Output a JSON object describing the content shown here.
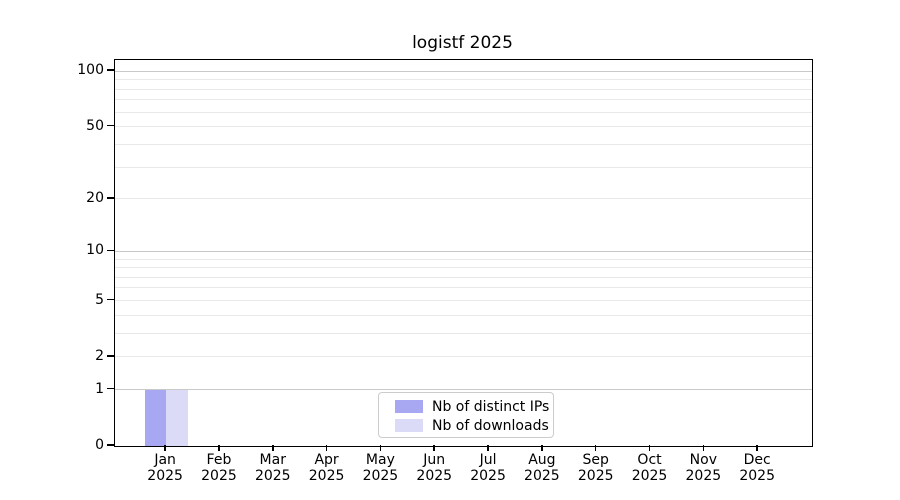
{
  "chart_data": {
    "type": "bar",
    "title": "logistf 2025",
    "categories": [
      "Jan",
      "Feb",
      "Mar",
      "Apr",
      "May",
      "Jun",
      "Jul",
      "Aug",
      "Sep",
      "Oct",
      "Nov",
      "Dec"
    ],
    "x_tick_year": "2025",
    "series": [
      {
        "name": "Nb of distinct IPs",
        "color": "#a8a8f2",
        "values": [
          1,
          0,
          0,
          0,
          0,
          0,
          0,
          0,
          0,
          0,
          0,
          0
        ]
      },
      {
        "name": "Nb of downloads",
        "color": "#dbdbf8",
        "values": [
          1,
          0,
          0,
          0,
          0,
          0,
          0,
          0,
          0,
          0,
          0,
          0
        ]
      }
    ],
    "yscale": "log1p",
    "ylim": [
      0,
      115
    ],
    "yticks": [
      100,
      50,
      20,
      10,
      5,
      2,
      1,
      0
    ],
    "grid": {
      "major": [
        1,
        10,
        100
      ],
      "minor": [
        2,
        3,
        4,
        5,
        6,
        7,
        8,
        9,
        20,
        30,
        40,
        50,
        60,
        70,
        80,
        90
      ],
      "minor_color": "#e9e9e9",
      "major_color": "#c9c9c9"
    },
    "legend": {
      "position": "lower center",
      "entries": [
        "Nb of distinct IPs",
        "Nb of downloads"
      ]
    },
    "bar_width": 0.4,
    "xlim": [
      -0.95,
      12.0
    ]
  }
}
